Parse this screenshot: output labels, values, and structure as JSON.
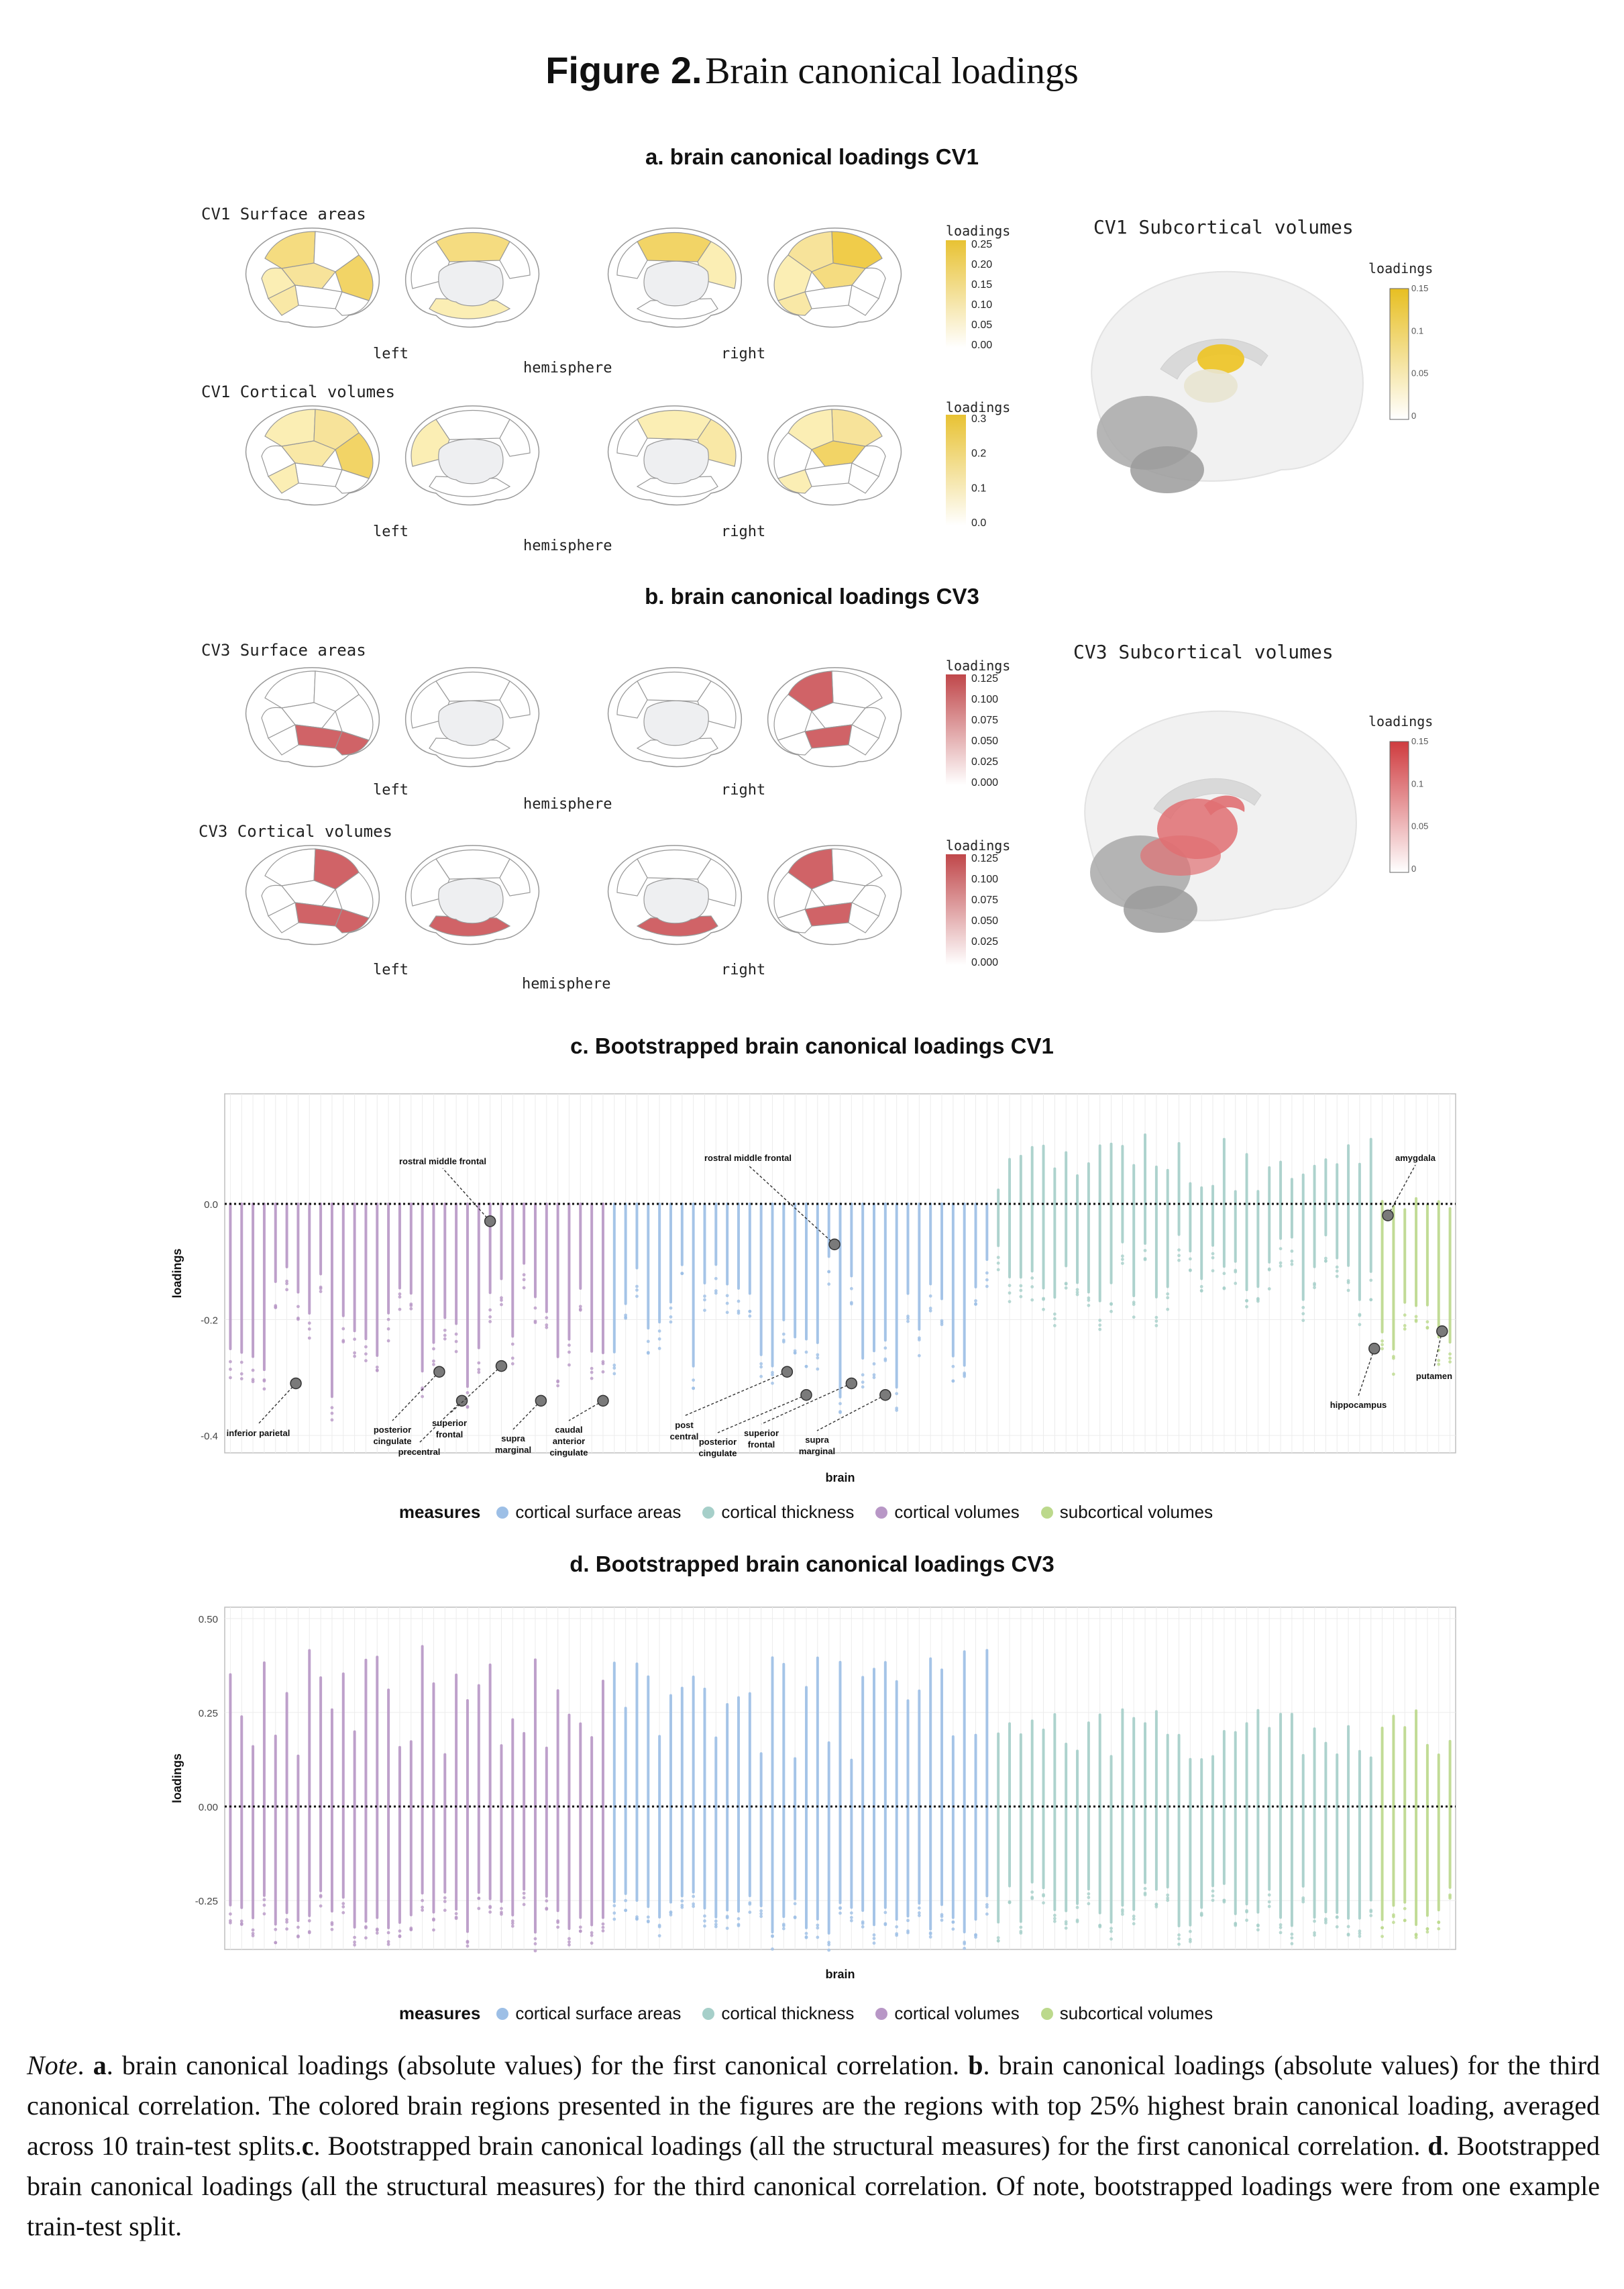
{
  "figure": {
    "label": "Figure 2.",
    "title": "Brain canonical loadings"
  },
  "panel_a": {
    "title": "a. brain canonical loadings CV1",
    "surface_label": "CV1 Surface areas",
    "cortical_label": "CV1 Cortical volumes",
    "subcortical_label": "CV1 Subcortical volumes",
    "left": "left",
    "right": "right",
    "hemisphere": "hemisphere",
    "loadings": "loadings",
    "surface_scale": [
      "0.25",
      "0.20",
      "0.15",
      "0.10",
      "0.05",
      "0.00"
    ],
    "cortical_scale": [
      "0.3",
      "0.2",
      "0.1",
      "0.0"
    ],
    "subcortical_scale": [
      "0.15",
      "0.1",
      "0.05",
      "0"
    ],
    "color": "#e8c233"
  },
  "panel_b": {
    "title": "b. brain canonical loadings CV3",
    "surface_label": "CV3 Surface areas",
    "cortical_label": "CV3 Cortical volumes",
    "subcortical_label": "CV3 Subcortical volumes",
    "left": "left",
    "right": "right",
    "hemisphere": "hemisphere",
    "loadings": "loadings",
    "surface_scale": [
      "0.125",
      "0.100",
      "0.075",
      "0.050",
      "0.025",
      "0.000"
    ],
    "cortical_scale": [
      "0.125",
      "0.100",
      "0.075",
      "0.050",
      "0.025",
      "0.000"
    ],
    "subcortical_scale": [
      "0.15",
      "0.1",
      "0.05",
      "0"
    ],
    "color": "#c0474a"
  },
  "legend": {
    "title": "measures",
    "items": [
      {
        "label": "cortical surface areas",
        "color": "#9dbfe6"
      },
      {
        "label": "cortical thickness",
        "color": "#a6cfc9"
      },
      {
        "label": "cortical volumes",
        "color": "#b897c6"
      },
      {
        "label": "subcortical volumes",
        "color": "#bcd98c"
      }
    ]
  },
  "chart_data": [
    {
      "type": "scatter",
      "title": "c. Bootstrapped brain canonical loadings CV1",
      "xlabel": "brain",
      "ylabel": "loadings",
      "ylim": [
        -0.43,
        0.19
      ],
      "yticks": [
        "0.0",
        "-0.2",
        "-0.4"
      ],
      "ytick_values": [
        0.0,
        -0.2,
        -0.4
      ],
      "group_counts": {
        "cortical volumes": 34,
        "cortical surface areas": 34,
        "cortical thickness": 34,
        "subcortical volumes": 7
      },
      "annotations": [
        {
          "label": "inferior parietal",
          "value": -0.31
        },
        {
          "label": "posterior cingulate",
          "value": -0.29
        },
        {
          "label": "precentral",
          "value": -0.34
        },
        {
          "label": "rostral middle frontal",
          "value": -0.03
        },
        {
          "label": "superior frontal",
          "value": -0.28
        },
        {
          "label": "supra marginal",
          "value": -0.34
        },
        {
          "label": "caudal anterior cingulate",
          "value": -0.34
        },
        {
          "label": "post central",
          "value": -0.29
        },
        {
          "label": "posterior cingulate",
          "value": -0.33
        },
        {
          "label": "rostral middle frontal",
          "value": -0.07
        },
        {
          "label": "superior frontal",
          "value": -0.31
        },
        {
          "label": "supra marginal",
          "value": -0.33
        },
        {
          "label": "amygdala",
          "value": -0.02
        },
        {
          "label": "hippocampus",
          "value": -0.25
        },
        {
          "label": "putamen",
          "value": -0.22
        }
      ]
    },
    {
      "type": "scatter",
      "title": "d. Bootstrapped brain canonical loadings CV3",
      "xlabel": "brain",
      "ylabel": "loadings",
      "ylim": [
        -0.38,
        0.53
      ],
      "yticks": [
        "0.50",
        "0.25",
        "0.00",
        "-0.25"
      ],
      "ytick_values": [
        0.5,
        0.25,
        0.0,
        -0.25
      ],
      "group_counts": {
        "cortical volumes": 34,
        "cortical surface areas": 34,
        "cortical thickness": 34,
        "subcortical volumes": 7
      }
    }
  ],
  "note": {
    "lead": "Note",
    "a_label": "a",
    "a_text": "brain canonical loadings (absolute values) for the first canonical correlation.",
    "b_label": "b",
    "b_text": "brain canonical loadings (absolute values) for the third canonical correlation. The colored brain regions presented in the figures are the regions with top 25% highest brain canonical loading, averaged across 10 train-test splits.",
    "c_label": "c",
    "c_text": "Bootstrapped brain canonical loadings (all the structural measures) for the first canonical correlation.",
    "d_label": "d",
    "d_text": "Bootstrapped brain canonical loadings (all the structural measures) for the third canonical correlation. Of note, bootstrapped loadings were from one example train-test split."
  }
}
